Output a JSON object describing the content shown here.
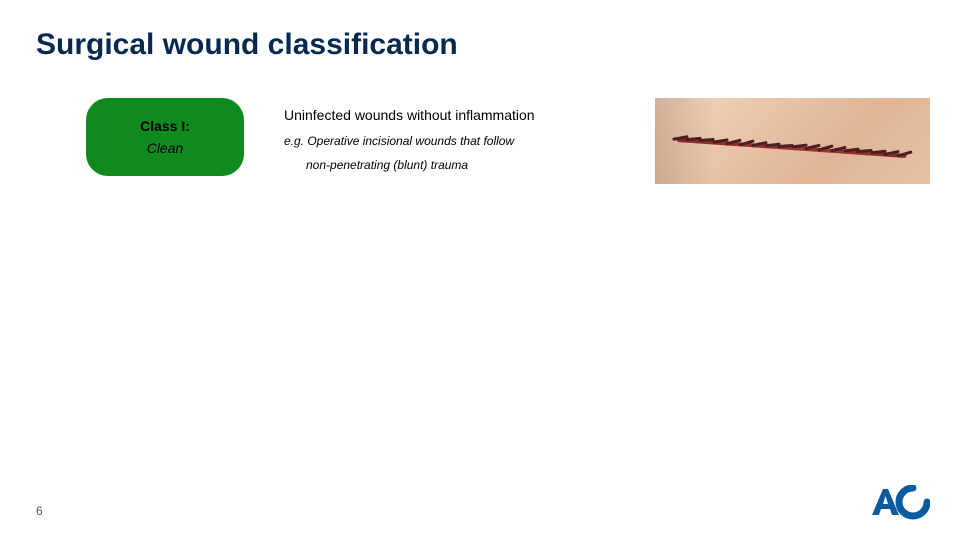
{
  "title": "Surgical wound classification",
  "badge": {
    "line1": "Class I:",
    "line2": "Clean",
    "bg_color": "#0f8a1f"
  },
  "description": {
    "line1": "Uninfected wounds without inflammation",
    "line2": "e.g. Operative incisional wounds that follow",
    "line3": "non-penetrating (blunt) trauma"
  },
  "wound_image": {
    "skin_gradient": [
      "#f0d5c0",
      "#e8c4a8",
      "#dfb596",
      "#e6c2a6"
    ],
    "suture_color": "#8a2a2a",
    "stitch_color": "#4a2020",
    "stitch_count": 18
  },
  "page_number": "6",
  "logo": {
    "text": "AO",
    "color": "#0a5aa0"
  },
  "colors": {
    "title": "#062a4f",
    "text": "#000000"
  }
}
